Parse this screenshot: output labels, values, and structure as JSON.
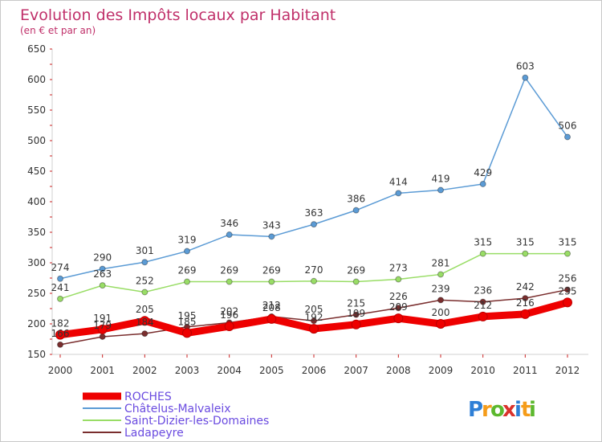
{
  "chart_data": {
    "type": "line",
    "title": "Evolution des Impôts locaux par Habitant",
    "subtitle": "(en € et par an)",
    "xlabel": "",
    "ylabel": "",
    "ylim": [
      150,
      650
    ],
    "y_ticks": [
      150,
      200,
      250,
      300,
      350,
      400,
      450,
      500,
      550,
      600,
      650
    ],
    "x": [
      "2000",
      "2001",
      "2002",
      "2003",
      "2004",
      "2005",
      "2006",
      "2007",
      "2008",
      "2009",
      "2010",
      "2011",
      "2012"
    ],
    "grid": false,
    "legend_position": "bottom-left",
    "series": [
      {
        "name": "ROCHES",
        "color": "#ee0000",
        "values": [
          182,
          191,
          205,
          185,
          196,
          208,
          192,
          199,
          209,
          200,
          212,
          216,
          235
        ],
        "labels": [
          "182",
          "191",
          "205",
          "185",
          "196",
          "208",
          "192",
          "199",
          "209",
          "200",
          "212",
          "216",
          "235"
        ]
      },
      {
        "name": "Châtelus-Malvaleix",
        "color": "#5b9bd5",
        "values": [
          274,
          290,
          301,
          319,
          346,
          343,
          363,
          386,
          414,
          419,
          429,
          603,
          506
        ],
        "labels": [
          "274",
          "290",
          "301",
          "319",
          "346",
          "343",
          "363",
          "386",
          "414",
          "419",
          "429",
          "603",
          "506"
        ]
      },
      {
        "name": "Saint-Dizier-les-Domaines",
        "color": "#99dd66",
        "values": [
          241,
          263,
          252,
          269,
          269,
          269,
          270,
          269,
          273,
          281,
          315,
          315,
          315
        ],
        "labels": [
          "241",
          "263",
          "252",
          "269",
          "269",
          "269",
          "270",
          "269",
          "273",
          "281",
          "315",
          "315",
          "315"
        ]
      },
      {
        "name": "Ladapeyre",
        "color": "#7a2e2e",
        "values": [
          166,
          179,
          184,
          195,
          202,
          212,
          205,
          215,
          226,
          239,
          236,
          242,
          256
        ],
        "labels": [
          "166",
          "179",
          "184",
          "195",
          "202",
          "212",
          "205",
          "215",
          "226",
          "239",
          "236",
          "242",
          "256"
        ]
      }
    ]
  },
  "brand": {
    "letters": [
      "P",
      "r",
      "o",
      "x",
      "i",
      "t",
      "i"
    ],
    "colors": [
      "#2e7fd6",
      "#f59c1a",
      "#5cb82e",
      "#d9322b",
      "#2e7fd6",
      "#f59c1a",
      "#5cb82e"
    ]
  }
}
